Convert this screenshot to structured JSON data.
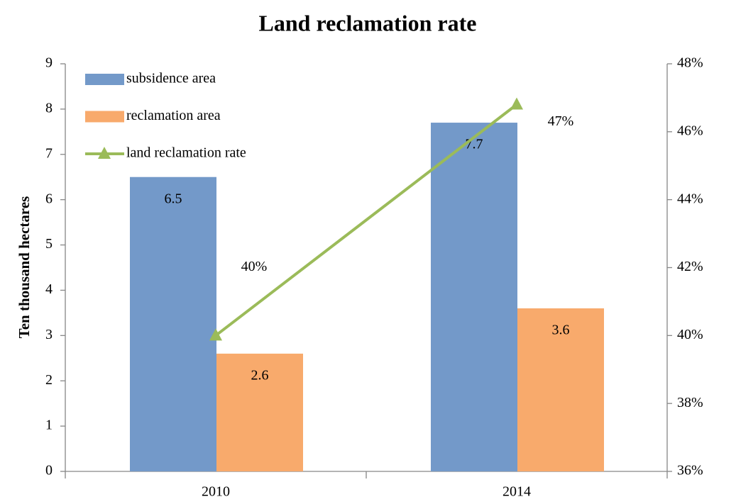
{
  "chart_data": {
    "type": "bar_line",
    "title": "Land reclamation rate",
    "ylabel": "Ten thousand hectares",
    "categories": [
      "2010",
      "2014"
    ],
    "series": [
      {
        "name": "subsidence area",
        "type": "bar",
        "color": "#7399c9",
        "values": [
          6.5,
          7.7
        ]
      },
      {
        "name": "reclamation area",
        "type": "bar",
        "color": "#f8aa6c",
        "values": [
          2.6,
          3.6
        ]
      },
      {
        "name": "land reclamation rate",
        "type": "line",
        "axis": "y2",
        "color": "#9bbb59",
        "values": [
          40,
          46.8
        ],
        "value_labels": [
          "40%",
          "47%"
        ]
      }
    ],
    "ylim": [
      0,
      9
    ],
    "yticks": [
      0,
      1,
      2,
      3,
      4,
      5,
      6,
      7,
      8,
      9
    ],
    "y2lim": [
      36,
      48
    ],
    "y2ticks": [
      {
        "value": 36,
        "label": "36%"
      },
      {
        "value": 38,
        "label": "38%"
      },
      {
        "value": 40,
        "label": "40%"
      },
      {
        "value": 42,
        "label": "42%"
      },
      {
        "value": 44,
        "label": "44%"
      },
      {
        "value": 46,
        "label": "46%"
      },
      {
        "value": 48,
        "label": "48%"
      }
    ],
    "legend": "top-left",
    "grid": false
  }
}
